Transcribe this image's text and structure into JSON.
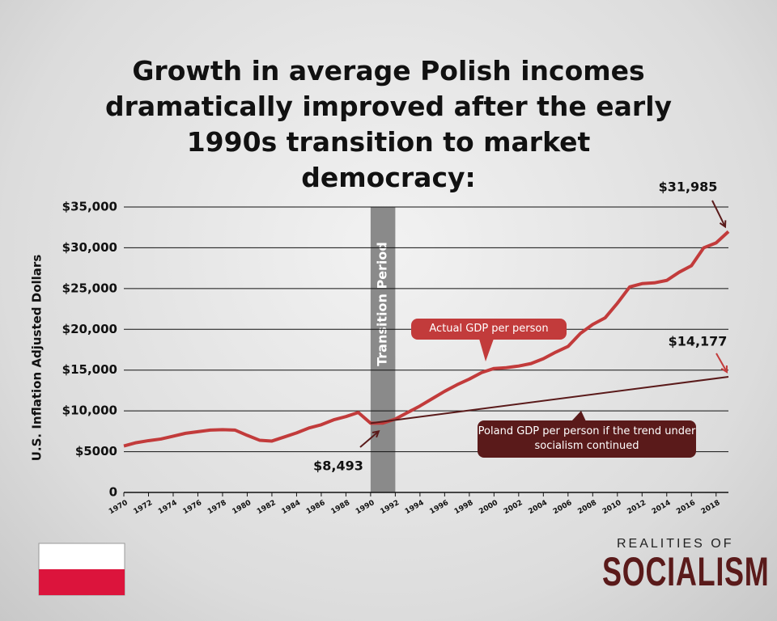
{
  "chart_data": {
    "type": "line",
    "title": "Growth in average Polish incomes dramatically improved after the early 1990s transition to market democracy:",
    "ylabel": "U.S. Inflation Adjusted Dollars",
    "xlim": [
      1970,
      2019
    ],
    "xticks": [
      1970,
      1972,
      1974,
      1976,
      1978,
      1980,
      1982,
      1984,
      1986,
      1988,
      1990,
      1992,
      1994,
      1996,
      1998,
      2000,
      2002,
      2004,
      2006,
      2008,
      2010,
      2012,
      2014,
      2016,
      2018
    ],
    "ylim": [
      0,
      35000
    ],
    "yticks": [
      0,
      {
        "value": 5000,
        "label": "$5000"
      },
      {
        "value": 10000,
        "label": "$10,000"
      },
      {
        "value": 15000,
        "label": "$15,000"
      },
      {
        "value": 20000,
        "label": "$20,000"
      },
      {
        "value": 25000,
        "label": "$25,000"
      },
      {
        "value": 30000,
        "label": "$30,000"
      },
      {
        "value": 35000,
        "label": "$35,000"
      }
    ],
    "grid": true,
    "series": [
      {
        "name": "Actual GDP per person",
        "color": "#c23b3b",
        "x": [
          1970,
          1971,
          1972,
          1973,
          1974,
          1975,
          1976,
          1977,
          1978,
          1979,
          1980,
          1981,
          1982,
          1983,
          1984,
          1985,
          1986,
          1987,
          1988,
          1989,
          1990,
          1991,
          1992,
          1993,
          1994,
          1995,
          1996,
          1997,
          1998,
          1999,
          2000,
          2001,
          2002,
          2003,
          2004,
          2005,
          2006,
          2007,
          2008,
          2009,
          2010,
          2011,
          2012,
          2013,
          2014,
          2015,
          2016,
          2017,
          2018,
          2019
        ],
        "values": [
          5700,
          6100,
          6350,
          6550,
          6900,
          7250,
          7450,
          7650,
          7700,
          7650,
          7000,
          6400,
          6300,
          6800,
          7300,
          7900,
          8300,
          8900,
          9300,
          9800,
          8493,
          8500,
          9000,
          9800,
          10600,
          11500,
          12400,
          13200,
          13900,
          14700,
          15200,
          15300,
          15500,
          15800,
          16400,
          17200,
          17900,
          19500,
          20600,
          21400,
          23200,
          25200,
          25600,
          25700,
          26000,
          27000,
          27800,
          30000,
          30600,
          31985
        ]
      },
      {
        "name": "Poland GDP per person if the trend under socialism continued",
        "color": "#5a1a1a",
        "x": [
          1990,
          2019
        ],
        "values": [
          8493,
          14177
        ]
      }
    ],
    "band": {
      "label": "Transition Period",
      "range": [
        1990,
        1992
      ]
    },
    "annotations": [
      {
        "text": "$31,985",
        "value": 31985
      },
      {
        "text": "$14,177",
        "value": 14177
      },
      {
        "text": "$8,493",
        "value": 8493
      }
    ],
    "brand": {
      "line1": "REALITIES OF",
      "line2": "SOCIALISM"
    }
  }
}
